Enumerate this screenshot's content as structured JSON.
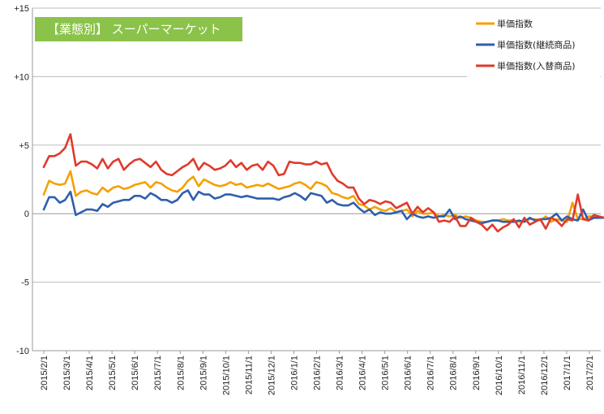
{
  "chart_data": {
    "type": "line",
    "title": "【業態別】 スーパーマーケット",
    "xlabel": "",
    "ylabel": "",
    "ylim": [
      -10,
      15
    ],
    "y_ticks": [
      15,
      10,
      5,
      0,
      -5,
      -10
    ],
    "y_tick_labels": [
      "+15",
      "+10",
      "+5",
      "0",
      "-5",
      "-10"
    ],
    "x_tick_labels": [
      "2015/2/1",
      "2015/3/1",
      "2015/4/1",
      "2015/5/1",
      "2015/6/1",
      "2015/7/1",
      "2015/8/1",
      "2015/9/1",
      "2015/10/1",
      "2015/11/1",
      "2015/12/1",
      "2016/1/1",
      "2016/2/1",
      "2016/3/1",
      "2016/4/1",
      "2016/5/1",
      "2016/6/1",
      "2016/7/1",
      "2016/8/1",
      "2016/9/1",
      "2016/10/1",
      "2016/11/1",
      "2016/12/1",
      "2017/1/1",
      "2017/2/1"
    ],
    "x_unit": "week",
    "grid": true,
    "legend_position": "top-right",
    "series": [
      {
        "name": "単価指数",
        "color": "#F5A000",
        "values": [
          1.4,
          2.4,
          2.2,
          2.1,
          2.2,
          3.1,
          1.3,
          1.6,
          1.7,
          1.5,
          1.4,
          1.9,
          1.6,
          1.9,
          2.0,
          1.8,
          1.9,
          2.1,
          2.2,
          2.3,
          1.9,
          2.3,
          2.2,
          1.9,
          1.7,
          1.6,
          1.9,
          2.4,
          2.7,
          2.0,
          2.5,
          2.3,
          2.1,
          2.0,
          2.1,
          2.3,
          2.1,
          2.2,
          1.9,
          2.0,
          2.1,
          2.0,
          2.2,
          2.0,
          1.8,
          1.9,
          2.0,
          2.2,
          2.3,
          2.1,
          1.8,
          2.3,
          2.2,
          2.0,
          1.5,
          1.4,
          1.2,
          1.1,
          1.3,
          0.7,
          0.6,
          0.3,
          0.5,
          0.3,
          0.2,
          0.4,
          0.1,
          0.2,
          0.3,
          -0.2,
          0.2,
          0.0,
          0.0,
          0.1,
          -0.2,
          -0.1,
          -0.2,
          -0.1,
          -0.3,
          -0.2,
          -0.3,
          -0.5,
          -0.6,
          -0.6,
          -0.5,
          -0.5,
          -0.4,
          -0.5,
          -0.5,
          -0.6,
          -0.5,
          -0.4,
          -0.4,
          -0.5,
          -0.2,
          -0.6,
          -0.4,
          -0.5,
          -0.6,
          0.8,
          -0.4,
          -0.4,
          -0.2,
          -0.2,
          -0.3
        ]
      },
      {
        "name": "単価指数(継続商品)",
        "color": "#2E5FAD",
        "values": [
          0.3,
          1.2,
          1.2,
          0.8,
          1.0,
          1.6,
          -0.1,
          0.1,
          0.3,
          0.3,
          0.2,
          0.7,
          0.5,
          0.8,
          0.9,
          1.0,
          1.0,
          1.3,
          1.3,
          1.1,
          1.5,
          1.3,
          1.0,
          1.0,
          0.8,
          1.0,
          1.5,
          1.7,
          1.0,
          1.6,
          1.4,
          1.4,
          1.1,
          1.2,
          1.4,
          1.4,
          1.3,
          1.2,
          1.3,
          1.2,
          1.1,
          1.1,
          1.1,
          1.1,
          1.0,
          1.2,
          1.3,
          1.5,
          1.3,
          1.0,
          1.5,
          1.4,
          1.3,
          0.8,
          1.0,
          0.7,
          0.6,
          0.6,
          0.8,
          0.4,
          0.1,
          0.3,
          -0.1,
          0.1,
          0.0,
          0.0,
          0.1,
          0.2,
          -0.4,
          0.0,
          -0.2,
          -0.3,
          -0.2,
          -0.3,
          -0.2,
          -0.2,
          0.3,
          -0.4,
          -0.2,
          -0.4,
          -0.5,
          -0.6,
          -0.7,
          -0.6,
          -0.5,
          -0.5,
          -0.6,
          -0.6,
          -0.6,
          -0.5,
          -0.6,
          -0.3,
          -0.5,
          -0.4,
          -0.4,
          -0.3,
          0.0,
          -0.5,
          -0.2,
          -0.4,
          -0.5,
          0.3,
          -0.5,
          -0.3,
          -0.3,
          -0.3,
          -0.7
        ]
      },
      {
        "name": "単価指数(入替商品)",
        "color": "#E03A2C",
        "values": [
          3.4,
          4.2,
          4.2,
          4.4,
          4.8,
          5.8,
          3.5,
          3.8,
          3.8,
          3.6,
          3.3,
          4.0,
          3.3,
          3.8,
          4.0,
          3.2,
          3.6,
          3.9,
          4.0,
          3.7,
          3.4,
          3.8,
          3.2,
          2.9,
          2.8,
          3.1,
          3.4,
          3.6,
          4.0,
          3.2,
          3.7,
          3.5,
          3.2,
          3.3,
          3.5,
          3.9,
          3.4,
          3.7,
          3.2,
          3.5,
          3.6,
          3.2,
          3.8,
          3.5,
          2.8,
          2.9,
          3.8,
          3.7,
          3.7,
          3.6,
          3.6,
          3.8,
          3.6,
          3.7,
          2.9,
          2.4,
          2.2,
          1.9,
          1.9,
          1.1,
          0.7,
          1.0,
          0.9,
          0.7,
          0.9,
          0.8,
          0.4,
          0.6,
          0.8,
          0.0,
          0.5,
          0.1,
          0.4,
          0.1,
          -0.6,
          -0.5,
          -0.6,
          -0.2,
          -0.9,
          -0.9,
          -0.3,
          -0.6,
          -0.8,
          -1.2,
          -0.8,
          -1.3,
          -1.0,
          -0.8,
          -0.4,
          -1.0,
          -0.3,
          -0.8,
          -0.6,
          -0.4,
          -1.1,
          -0.3,
          -0.5,
          -0.9,
          -0.4,
          -0.5,
          1.4,
          -0.4,
          -0.5,
          -0.1,
          -0.2,
          -0.3
        ]
      }
    ]
  }
}
